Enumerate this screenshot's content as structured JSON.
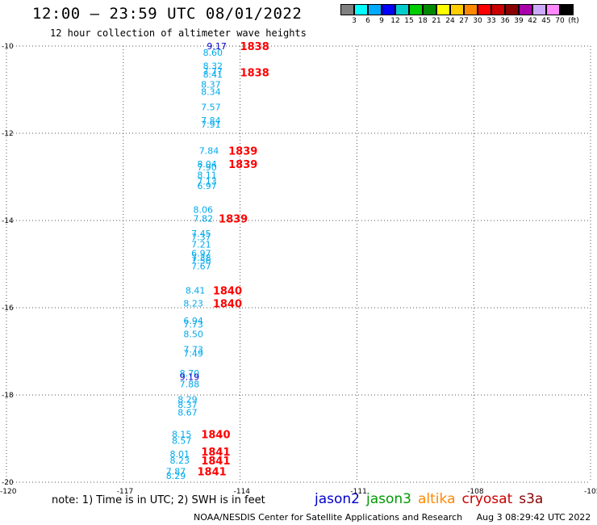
{
  "title": "12:00 – 23:59 UTC 08/01/2022",
  "subtitle": "12 hour collection of altimeter wave heights",
  "colorbar": {
    "colors": [
      "#808080",
      "#00ffff",
      "#00aaff",
      "#0000ff",
      "#00cccc",
      "#00cc00",
      "#008800",
      "#ffff00",
      "#ffcc00",
      "#ff8800",
      "#ff0000",
      "#cc0000",
      "#880000",
      "#aa00aa",
      "#ccaaff",
      "#ff88ff",
      "#000000"
    ],
    "labels": [
      "3",
      "6",
      "9",
      "12",
      "15",
      "18",
      "21",
      "24",
      "27",
      "30",
      "33",
      "36",
      "39",
      "42",
      "45",
      "70",
      "(ft)"
    ]
  },
  "note": "note:  1) Time is in UTC;  2) SWH is in feet",
  "legend": [
    {
      "name": "jason2",
      "color": "#0000cc"
    },
    {
      "name": "jason3",
      "color": "#009900"
    },
    {
      "name": "altika",
      "color": "#ff8800"
    },
    {
      "name": "cryosat",
      "color": "#cc0000"
    },
    {
      "name": "s3a",
      "color": "#880000"
    }
  ],
  "footer": {
    "center": "NOAA/NESDIS Center for Satellite Applications and Research",
    "time": "Aug  3 08:29:42 UTC 2022"
  },
  "chart_data": {
    "type": "scatter",
    "title": "12:00 – 23:59 UTC 08/01/2022",
    "subtitle": "12 hour collection of altimeter wave heights",
    "xlim": [
      -120,
      -105
    ],
    "ylim": [
      -20,
      -10
    ],
    "x_ticks": [
      -120,
      -117,
      -114,
      -111,
      -108,
      -105
    ],
    "x_tick_labels": [
      "-120",
      "-117",
      "-114",
      "-111",
      "-108",
      "-105"
    ],
    "y_ticks": [
      -10,
      -12,
      -14,
      -16,
      -18,
      -20
    ],
    "y_tick_labels": [
      "-10",
      "-12",
      "-14",
      "-16",
      "-18",
      "-20"
    ],
    "grid": true,
    "legend_position": "bottom-right",
    "wave_heights": [
      {
        "lon": -114.6,
        "lat": -10.0,
        "swh": "9.17",
        "color": "#0000cc"
      },
      {
        "lon": -114.7,
        "lat": -10.15,
        "swh": "8.60",
        "color": "#00aaee"
      },
      {
        "lon": -114.7,
        "lat": -10.45,
        "swh": "8.32",
        "color": "#00aaee"
      },
      {
        "lon": -114.7,
        "lat": -10.57,
        "swh": "7.77",
        "color": "#00aaee"
      },
      {
        "lon": -114.7,
        "lat": -10.65,
        "swh": "8.41",
        "color": "#00aaee"
      },
      {
        "lon": -114.75,
        "lat": -10.88,
        "swh": "8.37",
        "color": "#00aaee"
      },
      {
        "lon": -114.75,
        "lat": -11.05,
        "swh": "8.34",
        "color": "#00aaee"
      },
      {
        "lon": -114.75,
        "lat": -11.4,
        "swh": "7.57",
        "color": "#00aaee"
      },
      {
        "lon": -114.75,
        "lat": -11.7,
        "swh": "7.84",
        "color": "#00aaee"
      },
      {
        "lon": -114.75,
        "lat": -11.8,
        "swh": "7.91",
        "color": "#00aaee"
      },
      {
        "lon": -114.8,
        "lat": -12.4,
        "swh": "7.84",
        "color": "#00aaee"
      },
      {
        "lon": -114.85,
        "lat": -12.7,
        "swh": "8.04",
        "color": "#00aaee"
      },
      {
        "lon": -114.85,
        "lat": -12.78,
        "swh": "7.90",
        "color": "#00aaee"
      },
      {
        "lon": -114.85,
        "lat": -12.95,
        "swh": "8.11",
        "color": "#00aaee"
      },
      {
        "lon": -114.85,
        "lat": -13.1,
        "swh": "7.13",
        "color": "#00aaee"
      },
      {
        "lon": -114.85,
        "lat": -13.2,
        "swh": "6.97",
        "color": "#00aaee"
      },
      {
        "lon": -114.95,
        "lat": -13.75,
        "swh": "8.06",
        "color": "#00aaee"
      },
      {
        "lon": -114.95,
        "lat": -13.95,
        "swh": "7.82",
        "color": "#00aaee"
      },
      {
        "lon": -115.0,
        "lat": -14.3,
        "swh": "7.45",
        "color": "#00aaee"
      },
      {
        "lon": -115.0,
        "lat": -14.38,
        "swh": "7.37",
        "color": "#00aaee"
      },
      {
        "lon": -115.0,
        "lat": -14.55,
        "swh": "7.21",
        "color": "#00aaee"
      },
      {
        "lon": -115.0,
        "lat": -14.75,
        "swh": "6.97",
        "color": "#00aaee"
      },
      {
        "lon": -115.0,
        "lat": -14.85,
        "swh": "7.38",
        "color": "#00aaee"
      },
      {
        "lon": -115.0,
        "lat": -14.92,
        "swh": "7.56",
        "color": "#00aaee"
      },
      {
        "lon": -115.0,
        "lat": -15.05,
        "swh": "7.67",
        "color": "#00aaee"
      },
      {
        "lon": -115.15,
        "lat": -15.6,
        "swh": "8.41",
        "color": "#00aaee"
      },
      {
        "lon": -115.2,
        "lat": -15.9,
        "swh": "8.23",
        "color": "#00aaee"
      },
      {
        "lon": -115.2,
        "lat": -16.3,
        "swh": "6.94",
        "color": "#00aaee"
      },
      {
        "lon": -115.2,
        "lat": -16.38,
        "swh": "7.73",
        "color": "#00aaee"
      },
      {
        "lon": -115.2,
        "lat": -16.6,
        "swh": "8.50",
        "color": "#00aaee"
      },
      {
        "lon": -115.2,
        "lat": -16.95,
        "swh": "7.73",
        "color": "#00aaee"
      },
      {
        "lon": -115.2,
        "lat": -17.05,
        "swh": "7.49",
        "color": "#00aaee"
      },
      {
        "lon": -115.3,
        "lat": -17.5,
        "swh": "8.70",
        "color": "#00aaee"
      },
      {
        "lon": -115.3,
        "lat": -17.58,
        "swh": "9.19",
        "color": "#0000cc"
      },
      {
        "lon": -115.3,
        "lat": -17.75,
        "swh": "7.88",
        "color": "#00aaee"
      },
      {
        "lon": -115.35,
        "lat": -18.1,
        "swh": "8.29",
        "color": "#00aaee"
      },
      {
        "lon": -115.35,
        "lat": -18.22,
        "swh": "8.37",
        "color": "#00aaee"
      },
      {
        "lon": -115.35,
        "lat": -18.4,
        "swh": "8.67",
        "color": "#00aaee"
      },
      {
        "lon": -115.5,
        "lat": -18.9,
        "swh": "8.15",
        "color": "#00aaee"
      },
      {
        "lon": -115.5,
        "lat": -19.05,
        "swh": "8.57",
        "color": "#00aaee"
      },
      {
        "lon": -115.55,
        "lat": -19.35,
        "swh": "8.01",
        "color": "#00aaee"
      },
      {
        "lon": -115.55,
        "lat": -19.5,
        "swh": "8.23",
        "color": "#00aaee"
      },
      {
        "lon": -115.65,
        "lat": -19.75,
        "swh": "7.87",
        "color": "#00aaee"
      },
      {
        "lon": -115.65,
        "lat": -19.85,
        "swh": "8.29",
        "color": "#00aaee"
      }
    ],
    "pass_times": [
      {
        "lon": -114.0,
        "lat": -10.0,
        "label": "1838",
        "color": "#ff0000"
      },
      {
        "lon": -114.0,
        "lat": -10.6,
        "label": "1838",
        "color": "#ff0000"
      },
      {
        "lon": -114.3,
        "lat": -12.4,
        "label": "1839",
        "color": "#ff0000"
      },
      {
        "lon": -114.3,
        "lat": -12.7,
        "label": "1839",
        "color": "#ff0000"
      },
      {
        "lon": -114.55,
        "lat": -13.95,
        "label": "1839",
        "color": "#ff0000"
      },
      {
        "lon": -114.7,
        "lat": -15.6,
        "label": "1840",
        "color": "#ff0000"
      },
      {
        "lon": -114.7,
        "lat": -15.9,
        "label": "1840",
        "color": "#ff0000"
      },
      {
        "lon": -115.0,
        "lat": -18.9,
        "label": "1840",
        "color": "#ff0000"
      },
      {
        "lon": -115.0,
        "lat": -19.3,
        "label": "1841",
        "color": "#ff0000"
      },
      {
        "lon": -115.0,
        "lat": -19.5,
        "label": "1841",
        "color": "#ff0000"
      },
      {
        "lon": -115.1,
        "lat": -19.75,
        "label": "1841",
        "color": "#ff0000"
      }
    ]
  }
}
